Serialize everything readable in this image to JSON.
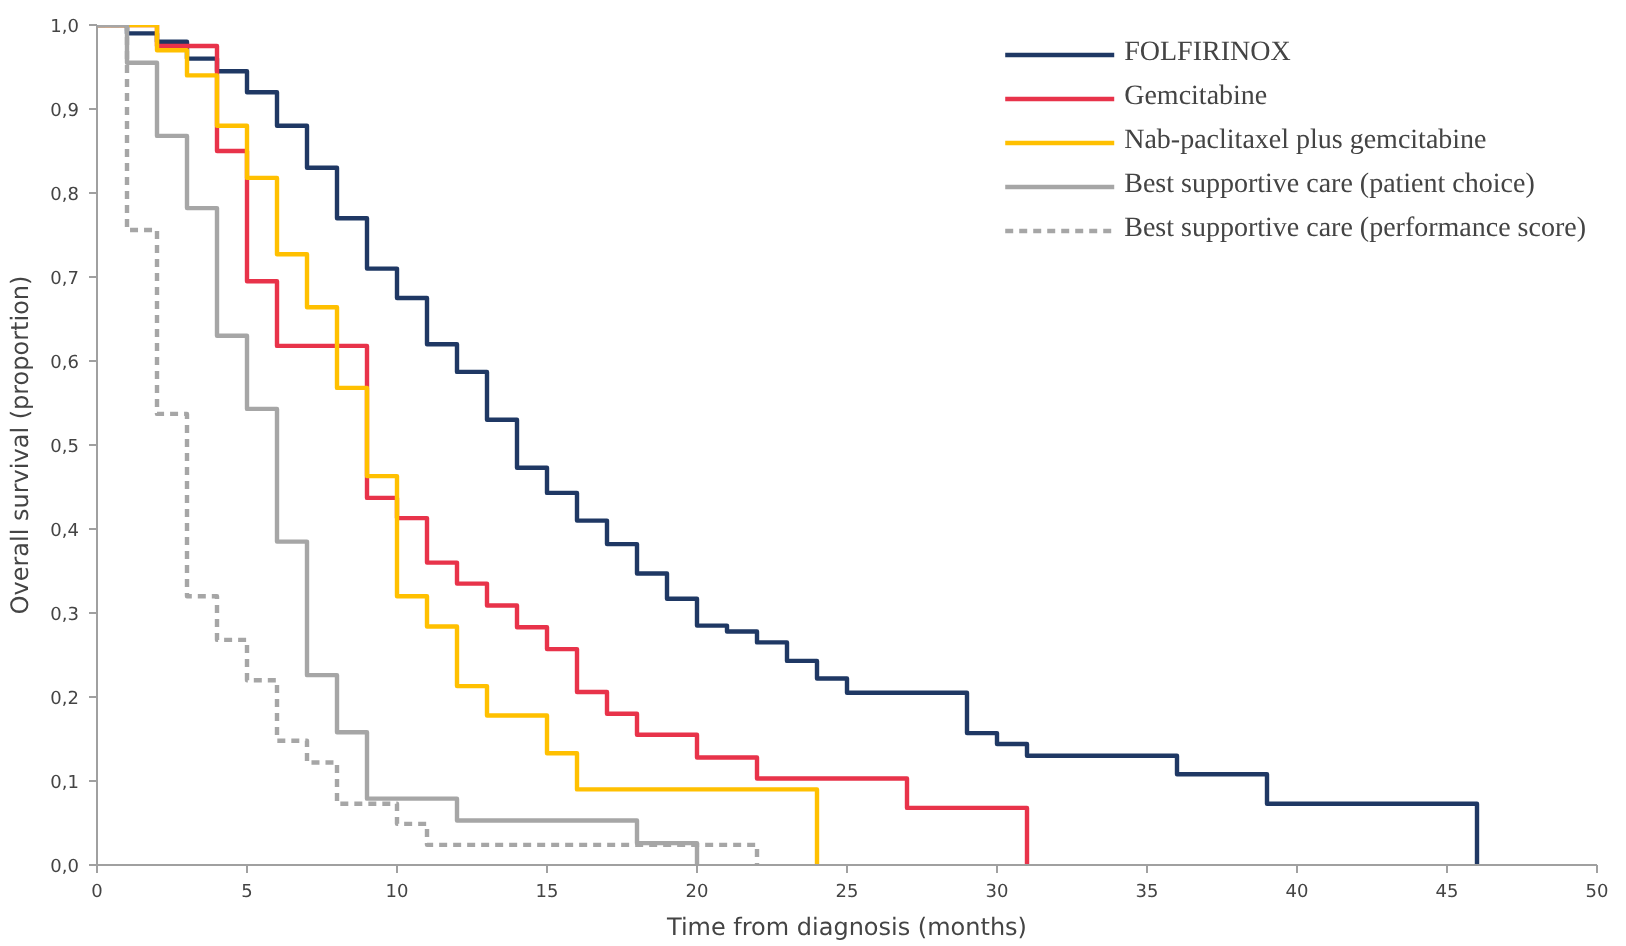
{
  "chart_data": {
    "type": "step",
    "xlabel": "Time from diagnosis (months)",
    "ylabel": "Overall survival (proportion)",
    "xlim": [
      0,
      50
    ],
    "xticks": [
      0,
      5,
      10,
      15,
      20,
      25,
      30,
      35,
      40,
      45,
      50
    ],
    "ylim": [
      0,
      1
    ],
    "yticks": [
      {
        "value": 0,
        "label": "0,0"
      },
      {
        "value": 0.1,
        "label": "0,1"
      },
      {
        "value": 0.2,
        "label": "0,2"
      },
      {
        "value": 0.3,
        "label": "0,3"
      },
      {
        "value": 0.4,
        "label": "0,4"
      },
      {
        "value": 0.5,
        "label": "0,5"
      },
      {
        "value": 0.6,
        "label": "0,6"
      },
      {
        "value": 0.7,
        "label": "0,7"
      },
      {
        "value": 0.8,
        "label": "0,8"
      },
      {
        "value": 0.9,
        "label": "0,9"
      },
      {
        "value": 1,
        "label": "1,0"
      }
    ],
    "grid": false,
    "legend": "top right",
    "series": [
      {
        "name": "FOLFIRINOX",
        "color": "#1f3864",
        "line_style": "solid",
        "x": [
          0,
          1,
          2,
          3,
          4,
          5,
          6,
          7,
          8,
          9,
          10,
          11,
          12,
          13,
          14,
          15,
          16,
          17,
          18,
          19,
          20,
          21,
          22,
          23,
          24,
          25,
          29,
          30,
          31,
          36,
          39,
          46
        ],
        "values": [
          1,
          0.99,
          0.98,
          0.96,
          0.945,
          0.92,
          0.88,
          0.83,
          0.77,
          0.71,
          0.675,
          0.62,
          0.587,
          0.53,
          0.473,
          0.443,
          0.41,
          0.382,
          0.347,
          0.317,
          0.285,
          0.278,
          0.265,
          0.243,
          0.222,
          0.205,
          0.157,
          0.144,
          0.13,
          0.108,
          0.073,
          0
        ]
      },
      {
        "name": "Gemcitabine",
        "color": "#e8334a",
        "line_style": "solid",
        "x": [
          0,
          2,
          4,
          5,
          6,
          9,
          10,
          11,
          12,
          13,
          14,
          15,
          16,
          17,
          18,
          20,
          22,
          27,
          31
        ],
        "values": [
          1,
          0.975,
          0.85,
          0.695,
          0.618,
          0.437,
          0.413,
          0.36,
          0.335,
          0.309,
          0.283,
          0.257,
          0.206,
          0.18,
          0.155,
          0.128,
          0.103,
          0.068,
          0
        ]
      },
      {
        "name": "Nab-paclitaxel plus gemcitabine",
        "color": "#ffc000",
        "line_style": "solid",
        "x": [
          0,
          2,
          3,
          4,
          5,
          6,
          7,
          8,
          9,
          10,
          11,
          12,
          13,
          15,
          16,
          24
        ],
        "values": [
          1,
          0.97,
          0.94,
          0.88,
          0.818,
          0.727,
          0.664,
          0.568,
          0.463,
          0.32,
          0.284,
          0.213,
          0.178,
          0.133,
          0.09,
          0
        ]
      },
      {
        "name": "Best supportive care (patient choice)",
        "color": "#a6a6a6",
        "line_style": "solid",
        "x": [
          0,
          1,
          2,
          3,
          4,
          5,
          6,
          7,
          8,
          9,
          12,
          18,
          20
        ],
        "values": [
          1,
          0.955,
          0.868,
          0.782,
          0.63,
          0.543,
          0.385,
          0.226,
          0.158,
          0.079,
          0.053,
          0.026,
          0
        ]
      },
      {
        "name": "Best supportive care (performance score)",
        "color": "#a6a6a6",
        "line_style": "dashed",
        "x": [
          0,
          1,
          2,
          3,
          4,
          5,
          6,
          7,
          8,
          10,
          11,
          22
        ],
        "values": [
          1,
          0.756,
          0.537,
          0.32,
          0.268,
          0.22,
          0.148,
          0.122,
          0.073,
          0.049,
          0.024,
          0
        ]
      }
    ]
  }
}
